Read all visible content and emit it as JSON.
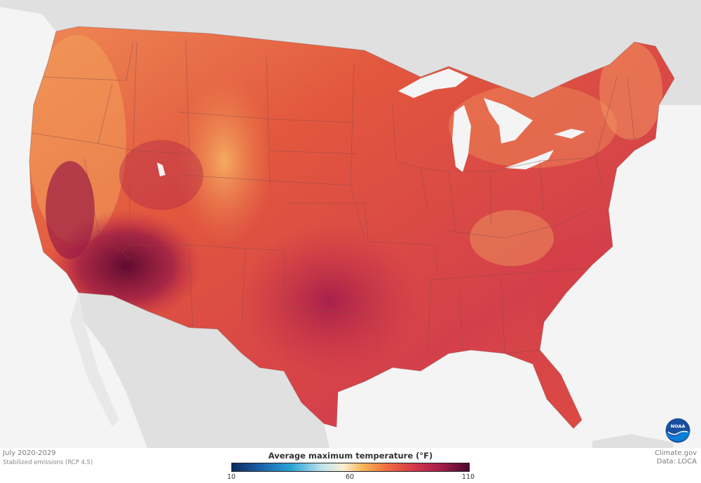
{
  "map": {
    "period": "July 2020-2029",
    "scenario": "Stabilized emissions (RCP 4.5)",
    "credit_site": "Climate.gov",
    "credit_data": "Data: LOCA",
    "logo_text": "NOAA",
    "legend": {
      "title": "Average maximum temperature (°F)",
      "ticks": [
        "10",
        "60",
        "110"
      ],
      "range": [
        10,
        110
      ],
      "colors": [
        "#0b2a5e",
        "#2aa3d6",
        "#fbefd2",
        "#ee6a3e",
        "#9e1b4a",
        "#4b0a2f"
      ]
    },
    "colors": {
      "land_outside": "#e0e0e0",
      "water": "#f4f4f4",
      "state_border": "#8b4a4a"
    }
  }
}
